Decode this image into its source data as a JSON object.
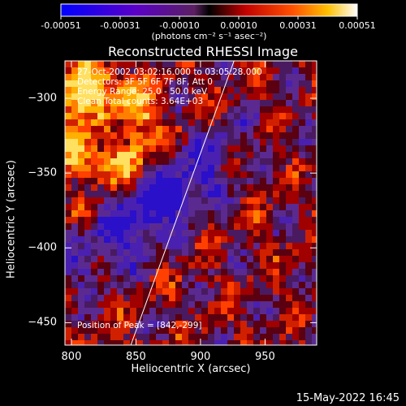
{
  "chart_data": {
    "type": "heatmap",
    "title": "Reconstructed RHESSI Image",
    "xlabel": "Heliocentric X (arcsec)",
    "ylabel": "Heliocentric Y (arcsec)",
    "xlim": [
      795,
      990
    ],
    "ylim": [
      -465,
      -275
    ],
    "x_ticks": [
      "800",
      "850",
      "900",
      "950"
    ],
    "y_ticks": [
      "-300",
      "-350",
      "-400",
      "-450"
    ],
    "colorbar": {
      "ticks": [
        "-0.00051",
        "-0.00031",
        "-0.00010",
        "0.00010",
        "0.00031",
        "0.00051"
      ],
      "unit": "(photons cm⁻² s⁻¹ asec⁻²)",
      "range": [
        -0.00051,
        0.00051
      ]
    },
    "info_lines": [
      "27-Oct-2002 03:02:16.000 to 03:05:28.000",
      "Detectors: 3F 5F 6F 7F 8F, Att 0",
      "Energy Range: 25.0 - 50.0 keV",
      "Clean    Total counts: 3.64E+03"
    ],
    "peak_label": "Position of Peak = [842,-299]",
    "limb_line": [
      [
        846,
        -465
      ],
      [
        926,
        -275
      ]
    ],
    "peak_position": [
      842,
      -299
    ]
  },
  "footer_timestamp": "15-May-2022 16:45"
}
